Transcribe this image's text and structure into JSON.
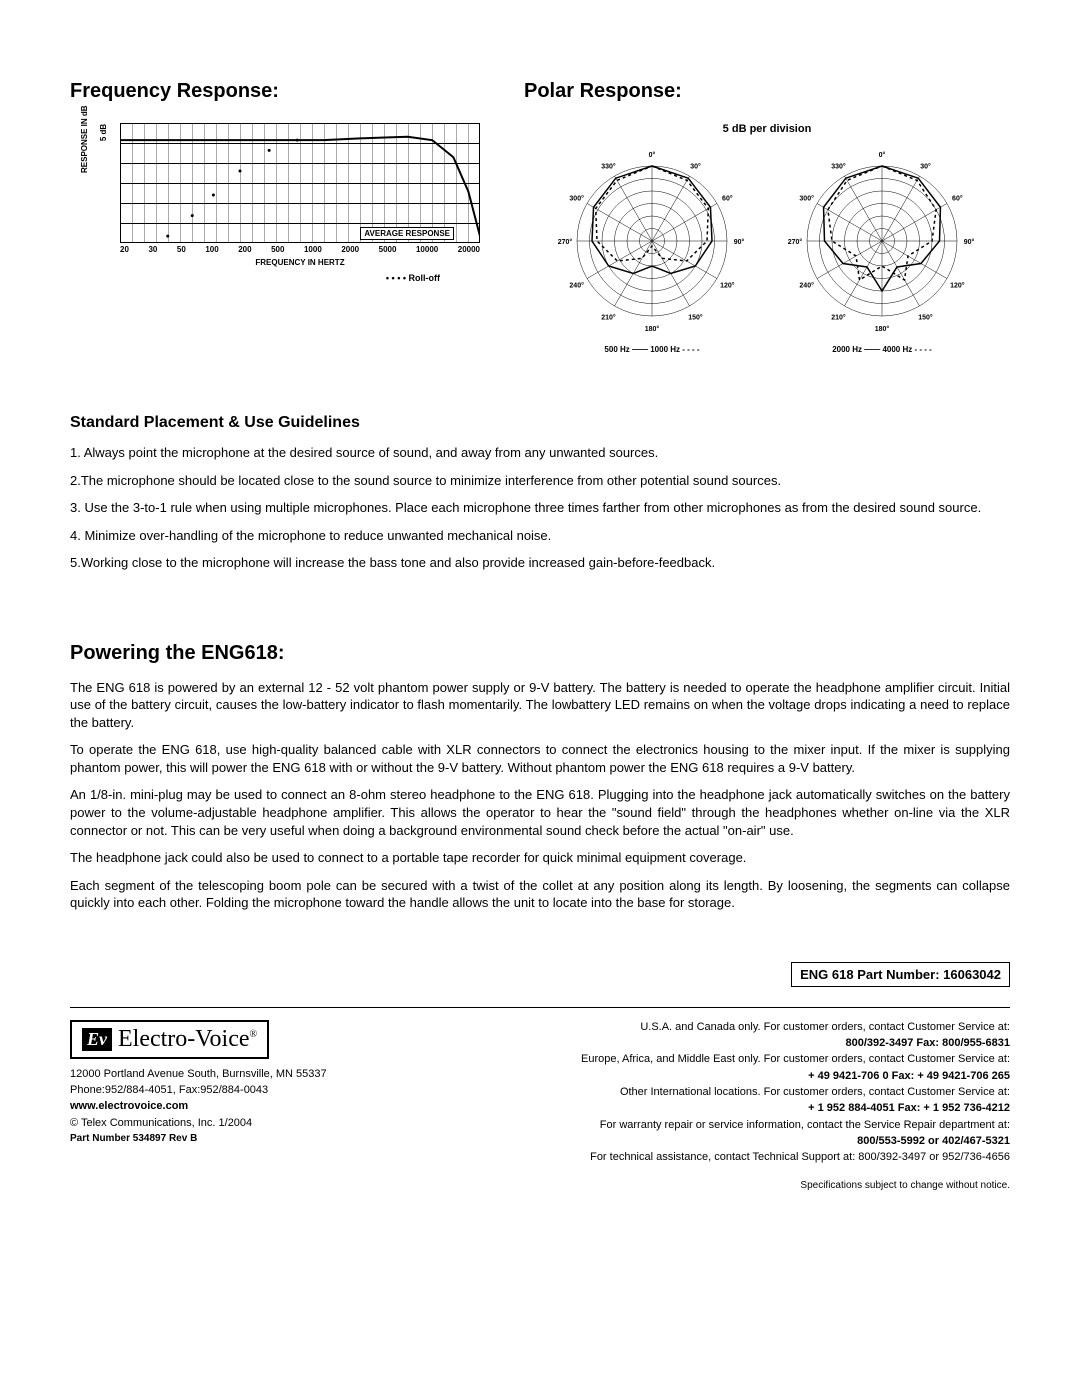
{
  "sections": {
    "freq_title": "Frequency Response:",
    "polar_title": "Polar Response:",
    "guidelines_title": "Standard Placement & Use Guidelines",
    "power_title": "Powering the ENG618:"
  },
  "freq_chart": {
    "type": "line",
    "ylabel": "RESPONSE IN dB",
    "tick5db": "5 dB",
    "xlabel": "FREQUENCY IN HERTZ",
    "avg_label": "AVERAGE RESPONSE",
    "rolloff_label": "Roll-off",
    "xticks": [
      "20",
      "30",
      "50",
      "100",
      "200",
      "500",
      "1000",
      "2000",
      "5000",
      "10000",
      "20000"
    ],
    "xlim_hz": [
      20,
      20000
    ],
    "ylim_db": [
      -30,
      5
    ],
    "grid_color": "#000000",
    "bg_color": "#ffffff",
    "curve_main": [
      {
        "hz": 20,
        "db": 0
      },
      {
        "hz": 50,
        "db": 0
      },
      {
        "hz": 100,
        "db": 0
      },
      {
        "hz": 200,
        "db": 0
      },
      {
        "hz": 500,
        "db": 0
      },
      {
        "hz": 1000,
        "db": 0
      },
      {
        "hz": 2000,
        "db": 0.5
      },
      {
        "hz": 5000,
        "db": 1
      },
      {
        "hz": 8000,
        "db": 0
      },
      {
        "hz": 12000,
        "db": -5
      },
      {
        "hz": 16000,
        "db": -15
      },
      {
        "hz": 20000,
        "db": -28
      }
    ],
    "curve_rolloff": [
      {
        "hz": 50,
        "db": -28
      },
      {
        "hz": 80,
        "db": -22
      },
      {
        "hz": 120,
        "db": -16
      },
      {
        "hz": 200,
        "db": -9
      },
      {
        "hz": 350,
        "db": -3
      },
      {
        "hz": 600,
        "db": 0
      }
    ],
    "line_color": "#000000",
    "rolloff_style": "dotted"
  },
  "polar": {
    "caption": "5 dB per division",
    "angles": [
      "0°",
      "30°",
      "60°",
      "90°",
      "120°",
      "150°",
      "180°",
      "210°",
      "240°",
      "270°",
      "300°",
      "330°"
    ],
    "rings_db": [
      0,
      -5,
      -10,
      -15,
      -20,
      -25
    ],
    "left_freqs": "500 Hz ——    1000 Hz - - - -",
    "right_freqs": "2000 Hz ——    4000 Hz - - - -",
    "pattern_left_500": [
      0,
      -1,
      -3,
      -6,
      -10,
      -15,
      -20,
      -15,
      -10,
      -6,
      -3,
      -1
    ],
    "pattern_left_1000": [
      0,
      -2,
      -4,
      -8,
      -14,
      -22,
      -28,
      -22,
      -14,
      -8,
      -4,
      -2
    ],
    "pattern_right_2000": [
      0,
      -1,
      -3,
      -7,
      -12,
      -18,
      -10,
      -18,
      -12,
      -7,
      -3,
      -1
    ],
    "pattern_right_4000": [
      0,
      -2,
      -5,
      -10,
      -18,
      -12,
      -20,
      -12,
      -18,
      -10,
      -5,
      -2
    ],
    "line_color": "#000000",
    "bg_color": "#ffffff"
  },
  "guidelines": [
    "1. Always point the microphone at the desired source of sound, and away from any unwanted sources.",
    "2.The microphone should be located close to the sound source to minimize interference from other potential sound sources.",
    "3. Use the 3-to-1 rule when using multiple microphones. Place each microphone three times farther from other microphones as from the desired sound source.",
    "4. Minimize over-handling of the microphone to reduce unwanted mechanical noise.",
    "5.Working close to the microphone will increase the bass tone and also provide increased gain-before-feedback."
  ],
  "power_paragraphs": [
    "The ENG 618 is powered by an external 12 - 52 volt phantom power supply or 9-V battery. The battery is needed to operate the headphone amplifier circuit. Initial use of the battery circuit, causes the low-battery indicator to flash momentarily. The lowbattery LED remains on when the voltage drops indicating a need to replace the battery.",
    "To operate the ENG 618, use high-quality balanced cable with XLR connectors to connect the electronics housing to the mixer input. If the mixer is supplying phantom power, this will power the ENG 618 with or without the 9-V battery. Without phantom power the ENG 618 requires a 9-V battery.",
    "An 1/8-in. mini-plug may be used to connect an 8-ohm stereo headphone to the ENG 618. Plugging into the headphone jack automatically switches on the battery power to the volume-adjustable headphone amplifier. This allows the operator to hear the \"sound field\" through the headphones whether on-line via the XLR connector or not. This can be very useful when doing a background environmental sound check before the actual \"on-air\" use.",
    "The headphone jack could also be used to connect to a portable tape recorder for quick minimal equipment coverage.",
    "Each segment of the telescoping boom pole can be secured with a twist of the collet at any position along its length. By loosening, the segments can collapse quickly into each other. Folding the microphone toward the handle allows the unit to locate into the base for storage."
  ],
  "part_number_box": "ENG 618 Part Number: 16063042",
  "footer": {
    "logo_ev": "Ev",
    "logo_text": "Electro-Voice",
    "logo_reg": "®",
    "address": "12000 Portland Avenue South, Burnsville, MN 55337",
    "phone": "Phone:952/884-4051, Fax:952/884-0043",
    "website": "www.electrovoice.com",
    "copyright": "© Telex Communications, Inc. 1/2004",
    "part_num": "Part Number 534897  Rev B",
    "contact": [
      {
        "text": "U.S.A. and Canada only. For customer orders, contact Customer Service at:",
        "bold": false
      },
      {
        "text": "800/392-3497 Fax: 800/955-6831",
        "bold": true
      },
      {
        "text": "Europe, Africa, and Middle East only. For customer orders, contact Customer Service at:",
        "bold": false
      },
      {
        "text": "+ 49 9421-706 0   Fax: + 49 9421-706 265",
        "bold": true
      },
      {
        "text": "Other International locations. For customer orders, contact Customer Service at:",
        "bold": false
      },
      {
        "text": "+ 1 952 884-4051   Fax: + 1 952 736-4212",
        "bold": true
      },
      {
        "text": "For warranty repair or service information, contact the Service Repair department at:",
        "bold": false
      },
      {
        "text": "800/553-5992 or 402/467-5321",
        "bold": true
      },
      {
        "text": "For technical assistance, contact Technical Support at: 800/392-3497 or 952/736-4656",
        "bold": false
      }
    ],
    "spec_note": "Specifications subject to change without notice."
  }
}
